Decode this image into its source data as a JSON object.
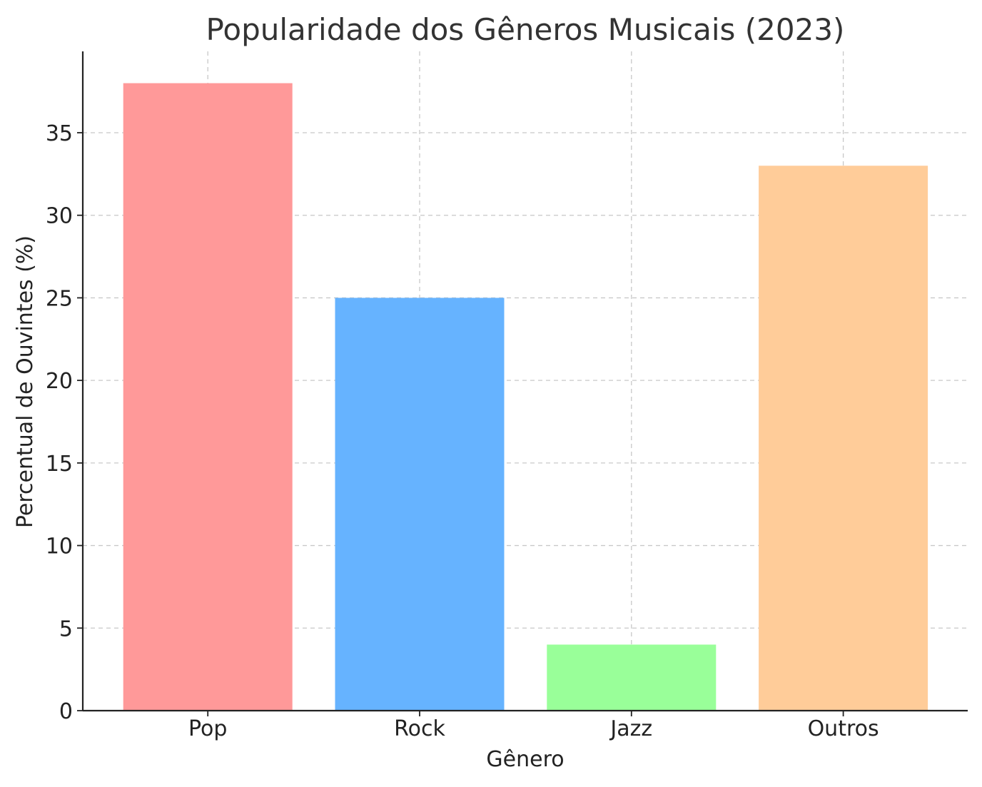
{
  "chart_data": {
    "type": "bar",
    "title": "Popularidade dos Gêneros Musicais (2023)",
    "xlabel": "Gênero",
    "ylabel": "Percentual de Ouvintes (%)",
    "categories": [
      "Pop",
      "Rock",
      "Jazz",
      "Outros"
    ],
    "values": [
      38,
      25,
      4,
      33
    ],
    "colors": [
      "#ff9999",
      "#66b3ff",
      "#99ff99",
      "#ffcc99"
    ],
    "ylim": [
      0,
      40
    ],
    "yticks": [
      "0",
      "5",
      "10",
      "15",
      "20",
      "25",
      "30",
      "35"
    ],
    "grid": true,
    "legend": "none"
  }
}
